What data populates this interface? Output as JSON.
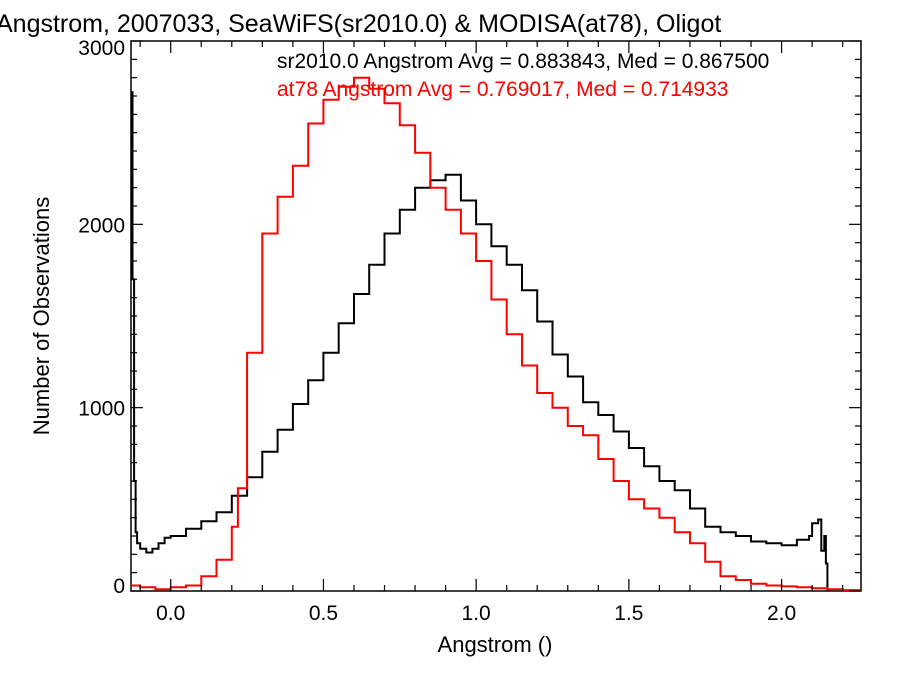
{
  "chart_data": {
    "type": "line",
    "title": "Angstrom, 2007033, SeaWiFS(sr2010.0) & MODISA(at78), Oligot",
    "xlabel": "Angstrom ()",
    "ylabel": "Number of Observations",
    "xlim": [
      -0.13,
      2.26
    ],
    "ylim": [
      0,
      3000
    ],
    "x_ticks": [
      "0.0",
      "0.5",
      "1.0",
      "1.5",
      "2.0"
    ],
    "y_ticks": [
      "0",
      "1000",
      "2000",
      "3000"
    ],
    "grid": false,
    "step": true,
    "annotations": [
      {
        "text": "sr2010.0 Angstrom Avg = 0.883843, Med = 0.867500",
        "color": "#000000"
      },
      {
        "text": "at78 Angstrom Avg = 0.769017, Med = 0.714933",
        "color": "#ff0000"
      }
    ],
    "series": [
      {
        "color": "#000000",
        "x": [
          -0.13,
          -0.125,
          -0.12,
          -0.115,
          -0.11,
          -0.1,
          -0.08,
          -0.06,
          -0.04,
          -0.02,
          0.0,
          0.05,
          0.1,
          0.15,
          0.2,
          0.25,
          0.3,
          0.35,
          0.4,
          0.45,
          0.5,
          0.55,
          0.6,
          0.65,
          0.7,
          0.75,
          0.8,
          0.85,
          0.9,
          0.95,
          1.0,
          1.05,
          1.1,
          1.15,
          1.2,
          1.25,
          1.3,
          1.35,
          1.4,
          1.45,
          1.5,
          1.55,
          1.6,
          1.65,
          1.7,
          1.75,
          1.8,
          1.85,
          1.9,
          1.95,
          2.0,
          2.05,
          2.09,
          2.1,
          2.12,
          2.13,
          2.14,
          2.145,
          2.15
        ],
        "values": [
          2720,
          1700,
          600,
          320,
          260,
          230,
          210,
          230,
          260,
          290,
          300,
          340,
          380,
          430,
          520,
          620,
          760,
          880,
          1020,
          1150,
          1300,
          1460,
          1620,
          1780,
          1950,
          2080,
          2200,
          2240,
          2270,
          2130,
          2000,
          1880,
          1780,
          1640,
          1470,
          1290,
          1170,
          1030,
          960,
          870,
          780,
          680,
          600,
          550,
          450,
          350,
          320,
          300,
          270,
          260,
          250,
          280,
          300,
          370,
          390,
          220,
          300,
          150,
          0
        ]
      },
      {
        "color": "#ff0000",
        "x": [
          -0.13,
          -0.1,
          -0.05,
          0.0,
          0.05,
          0.1,
          0.15,
          0.2,
          0.22,
          0.25,
          0.3,
          0.35,
          0.4,
          0.45,
          0.5,
          0.55,
          0.6,
          0.65,
          0.7,
          0.75,
          0.8,
          0.85,
          0.9,
          0.95,
          1.0,
          1.05,
          1.1,
          1.15,
          1.2,
          1.25,
          1.3,
          1.35,
          1.4,
          1.45,
          1.5,
          1.55,
          1.6,
          1.65,
          1.7,
          1.75,
          1.8,
          1.85,
          1.9,
          1.95,
          2.0,
          2.05,
          2.1,
          2.15,
          2.2,
          2.26
        ],
        "values": [
          30,
          20,
          10,
          20,
          30,
          80,
          170,
          350,
          560,
          1300,
          1950,
          2150,
          2320,
          2550,
          2680,
          2750,
          2800,
          2740,
          2660,
          2540,
          2390,
          2200,
          2080,
          1950,
          1800,
          1590,
          1400,
          1230,
          1080,
          1000,
          900,
          850,
          720,
          600,
          500,
          450,
          400,
          320,
          260,
          160,
          80,
          60,
          40,
          30,
          25,
          20,
          15,
          10,
          5,
          5
        ]
      }
    ]
  }
}
